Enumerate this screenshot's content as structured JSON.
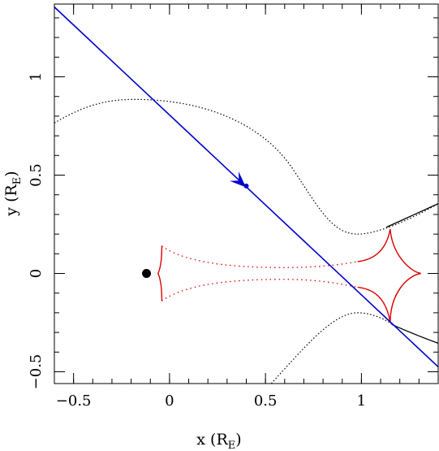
{
  "chart_data": {
    "type": "line",
    "xlabel": "x (R",
    "xlabel_sub": "E",
    "xlabel_close": ")",
    "ylabel": "y (R",
    "ylabel_sub": "E",
    "ylabel_close": ")",
    "xlim": [
      -0.6,
      1.4
    ],
    "ylim": [
      -0.56,
      1.37
    ],
    "x_ticks": [
      {
        "value": -0.5,
        "label": "−0.5"
      },
      {
        "value": 0,
        "label": "0"
      },
      {
        "value": 0.5,
        "label": "0.5"
      },
      {
        "value": 1,
        "label": "1"
      }
    ],
    "y_ticks": [
      {
        "value": -0.5,
        "label": "−0.5"
      },
      {
        "value": 0,
        "label": "0"
      },
      {
        "value": 0.5,
        "label": "0.5"
      },
      {
        "value": 1,
        "label": "1"
      }
    ],
    "source_trajectory": {
      "color": "#0000cc",
      "points": [
        [
          -0.6,
          1.355
        ],
        [
          1.4,
          -0.475
        ]
      ],
      "arrow_at": [
        0.38,
        0.455
      ],
      "marker_at": [
        0.4,
        0.445
      ]
    },
    "lens_star": {
      "x": -0.12,
      "y": 0.0,
      "color": "#000000"
    },
    "caustic": {
      "color": "#dd0000",
      "cusps": {
        "left_top": [
          -0.04,
          0.14
        ],
        "left_mid": [
          -0.06,
          0.0
        ],
        "left_bottom": [
          -0.04,
          -0.14
        ],
        "right_top": [
          1.15,
          0.225
        ],
        "right_mid": [
          1.31,
          0.0
        ],
        "right_bottom": [
          1.15,
          -0.25
        ]
      }
    },
    "critical_curves": {
      "color": "#000000",
      "upper": {
        "peak": [
          -0.18,
          0.885
        ],
        "trough": [
          0.98,
          0.2
        ],
        "end": [
          1.4,
          0.355
        ]
      },
      "lower": {
        "start": [
          0.53,
          -0.56
        ],
        "peak": [
          0.98,
          -0.2
        ],
        "end": [
          1.4,
          -0.355
        ]
      }
    }
  }
}
